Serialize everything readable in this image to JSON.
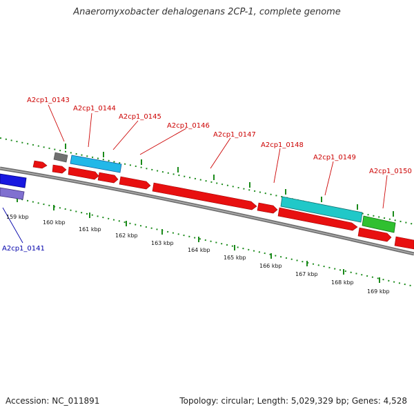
{
  "title": "Anaeromyxobacter dehalogenans 2CP-1, complete genome",
  "footer": {
    "accession": "Accession: NC_011891",
    "summary": "Topology: circular; Length: 5,029,329 bp; Genes: 4,528"
  },
  "colors": {
    "label_red": "#cc0000",
    "label_blue": "#0000aa",
    "tick_green": "#1a8a1a",
    "backbone": "#808080"
  },
  "scale_labels": [
    "159 kbp",
    "160 kbp",
    "161 kbp",
    "162 kbp",
    "163 kbp",
    "164 kbp",
    "165 kbp",
    "166 kbp",
    "167 kbp",
    "168 kbp",
    "169 kbp"
  ],
  "gene_labels": [
    {
      "id": "g143",
      "text": "A2cp1_0143",
      "color": "#cc0000"
    },
    {
      "id": "g144",
      "text": "A2cp1_0144",
      "color": "#cc0000"
    },
    {
      "id": "g145",
      "text": "A2cp1_0145",
      "color": "#cc0000"
    },
    {
      "id": "g146",
      "text": "A2cp1_0146",
      "color": "#cc0000"
    },
    {
      "id": "g147",
      "text": "A2cp1_0147",
      "color": "#cc0000"
    },
    {
      "id": "g148",
      "text": "A2cp1_0148",
      "color": "#cc0000"
    },
    {
      "id": "g149",
      "text": "A2cp1_0149",
      "color": "#cc0000"
    },
    {
      "id": "g150",
      "text": "A2cp1_0150",
      "color": "#cc0000"
    },
    {
      "id": "g141",
      "text": "A2cp1_0141",
      "color": "#0000aa"
    }
  ]
}
